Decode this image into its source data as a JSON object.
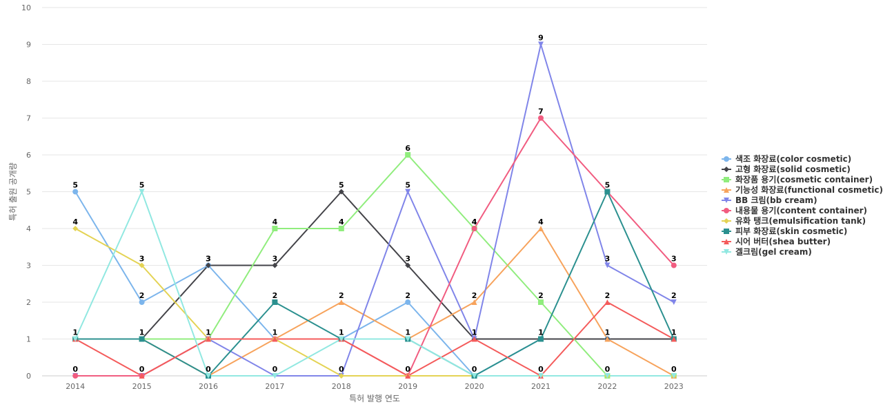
{
  "chart_data": {
    "type": "line",
    "title": "",
    "xlabel": "특허 발행 연도",
    "ylabel": "특허 출원 공개량",
    "ylim": [
      0,
      10
    ],
    "yticks": [
      0,
      1,
      2,
      3,
      4,
      5,
      6,
      7,
      8,
      9,
      10
    ],
    "grid": true,
    "legend_position": "right",
    "categories": [
      "2014",
      "2015",
      "2016",
      "2017",
      "2018",
      "2019",
      "2020",
      "2021",
      "2022",
      "2023"
    ],
    "series": [
      {
        "name": "색조 화장료(color cosmetic)",
        "color": "#7cb5ec",
        "marker": "circle",
        "values": [
          5,
          2,
          3,
          1,
          1,
          2,
          0,
          1,
          1,
          1
        ]
      },
      {
        "name": "고형 화장료(solid cosmetic)",
        "color": "#434348",
        "marker": "diamond",
        "values": [
          1,
          1,
          3,
          3,
          5,
          3,
          1,
          1,
          1,
          1
        ]
      },
      {
        "name": "화장품 용기(cosmetic container)",
        "color": "#90ed7d",
        "marker": "square",
        "values": [
          1,
          1,
          1,
          4,
          4,
          6,
          4,
          2,
          0,
          0
        ]
      },
      {
        "name": "기능성 화장료(functional cosmetic)",
        "color": "#f7a35c",
        "marker": "triangle",
        "values": [
          1,
          1,
          0,
          1,
          2,
          1,
          2,
          4,
          1,
          0
        ]
      },
      {
        "name": "BB 크림(bb cream)",
        "color": "#8085e9",
        "marker": "triangle-down",
        "values": [
          0,
          0,
          1,
          0,
          0,
          5,
          1,
          9,
          3,
          2
        ]
      },
      {
        "name": "내용물 용기(content container)",
        "color": "#f15c80",
        "marker": "circle",
        "values": [
          0,
          0,
          1,
          1,
          1,
          0,
          4,
          7,
          5,
          3
        ]
      },
      {
        "name": "유화 탱크(emulsification tank)",
        "color": "#e4d354",
        "marker": "diamond",
        "values": [
          4,
          3,
          1,
          1,
          0,
          0,
          0,
          0,
          0,
          0
        ]
      },
      {
        "name": "피부 화장료(skin cosmetic)",
        "color": "#2b908f",
        "marker": "square",
        "values": [
          1,
          1,
          0,
          2,
          1,
          1,
          0,
          1,
          5,
          1
        ]
      },
      {
        "name": "시어 버터(shea butter)",
        "color": "#f45b5b",
        "marker": "triangle",
        "values": [
          1,
          0,
          1,
          1,
          1,
          0,
          1,
          0,
          2,
          1
        ]
      },
      {
        "name": "겔크림(gel cream)",
        "color": "#91e8e1",
        "marker": "triangle-down",
        "values": [
          1,
          5,
          0,
          0,
          1,
          1,
          0,
          0,
          0,
          0
        ]
      }
    ],
    "data_labels": [
      {
        "category": "2014",
        "value": 5
      },
      {
        "category": "2014",
        "value": 4
      },
      {
        "category": "2014",
        "value": 1
      },
      {
        "category": "2014",
        "value": 0
      },
      {
        "category": "2015",
        "value": 5
      },
      {
        "category": "2015",
        "value": 3
      },
      {
        "category": "2015",
        "value": 2
      },
      {
        "category": "2015",
        "value": 1
      },
      {
        "category": "2015",
        "value": 0
      },
      {
        "category": "2016",
        "value": 3
      },
      {
        "category": "2016",
        "value": 3
      },
      {
        "category": "2016",
        "value": 1
      },
      {
        "category": "2016",
        "value": 0
      },
      {
        "category": "2017",
        "value": 4
      },
      {
        "category": "2017",
        "value": 3
      },
      {
        "category": "2017",
        "value": 2
      },
      {
        "category": "2017",
        "value": 1
      },
      {
        "category": "2017",
        "value": 0
      },
      {
        "category": "2018",
        "value": 5
      },
      {
        "category": "2018",
        "value": 4
      },
      {
        "category": "2018",
        "value": 2
      },
      {
        "category": "2018",
        "value": 1
      },
      {
        "category": "2018",
        "value": 0
      },
      {
        "category": "2019",
        "value": 6
      },
      {
        "category": "2019",
        "value": 5
      },
      {
        "category": "2019",
        "value": 3
      },
      {
        "category": "2019",
        "value": 2
      },
      {
        "category": "2019",
        "value": 1
      },
      {
        "category": "2019",
        "value": 0
      },
      {
        "category": "2020",
        "value": 4
      },
      {
        "category": "2020",
        "value": 4
      },
      {
        "category": "2020",
        "value": 2
      },
      {
        "category": "2020",
        "value": 1
      },
      {
        "category": "2020",
        "value": 0
      },
      {
        "category": "2021",
        "value": 9
      },
      {
        "category": "2021",
        "value": 7
      },
      {
        "category": "2021",
        "value": 4
      },
      {
        "category": "2021",
        "value": 2
      },
      {
        "category": "2021",
        "value": 1
      },
      {
        "category": "2021",
        "value": 0
      },
      {
        "category": "2022",
        "value": 5
      },
      {
        "category": "2022",
        "value": 3
      },
      {
        "category": "2022",
        "value": 2
      },
      {
        "category": "2022",
        "value": 1
      },
      {
        "category": "2022",
        "value": 0
      },
      {
        "category": "2023",
        "value": 3
      },
      {
        "category": "2023",
        "value": 2
      },
      {
        "category": "2023",
        "value": 1
      },
      {
        "category": "2023",
        "value": 0
      }
    ]
  }
}
